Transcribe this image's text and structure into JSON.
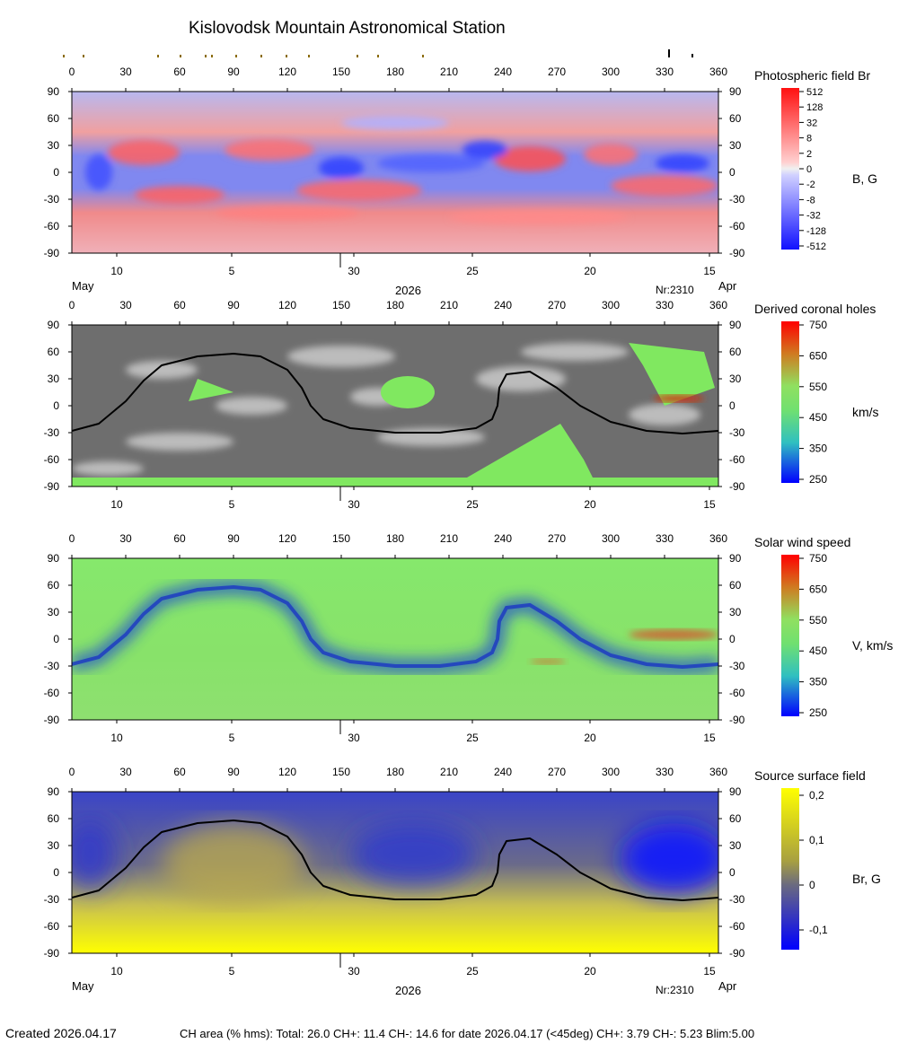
{
  "title": "Kislovodsk Mountain Astronomical Station",
  "chart_data": [
    {
      "type": "heatmap",
      "title": "Photospheric field Br",
      "colorbar_label": "B, G",
      "x_ticks": [
        0,
        30,
        60,
        90,
        120,
        150,
        180,
        210,
        240,
        270,
        300,
        330,
        360
      ],
      "y_ticks": [
        90,
        60,
        30,
        0,
        -30,
        -60,
        -90
      ],
      "xlim": [
        0,
        360
      ],
      "ylim": [
        -90,
        90
      ],
      "colorbar_ticks": [
        "512",
        "128",
        "32",
        "8",
        "2",
        "0",
        "-2",
        "-8",
        "-32",
        "-128",
        "-512"
      ],
      "date_ticks": [
        "10",
        "5",
        "30",
        "25",
        "20",
        "15"
      ],
      "month_left": "May",
      "year": "2026",
      "rotation": "Nr:2310",
      "month_right": "Apr"
    },
    {
      "type": "heatmap",
      "title": "Derived coronal holes",
      "colorbar_label": "km/s",
      "x_ticks": [
        0,
        30,
        60,
        90,
        120,
        150,
        180,
        210,
        240,
        270,
        300,
        330,
        360
      ],
      "y_ticks": [
        90,
        60,
        30,
        0,
        -30,
        -60,
        -90
      ],
      "xlim": [
        0,
        360
      ],
      "ylim": [
        -90,
        90
      ],
      "colorbar_ticks": [
        "750",
        "650",
        "550",
        "450",
        "350",
        "250"
      ],
      "date_ticks": [
        "10",
        "5",
        "30",
        "25",
        "20",
        "15"
      ]
    },
    {
      "type": "heatmap",
      "title": "Solar wind speed",
      "colorbar_label": "V, km/s",
      "x_ticks": [
        0,
        30,
        60,
        90,
        120,
        150,
        180,
        210,
        240,
        270,
        300,
        330,
        360
      ],
      "y_ticks": [
        90,
        60,
        30,
        0,
        -30,
        -60,
        -90
      ],
      "xlim": [
        0,
        360
      ],
      "ylim": [
        -90,
        90
      ],
      "colorbar_ticks": [
        "750",
        "650",
        "550",
        "450",
        "350",
        "250"
      ],
      "date_ticks": [
        "10",
        "5",
        "30",
        "25",
        "20",
        "15"
      ]
    },
    {
      "type": "heatmap",
      "title": "Source surface field",
      "colorbar_label": "Br, G",
      "x_ticks": [
        0,
        30,
        60,
        90,
        120,
        150,
        180,
        210,
        240,
        270,
        300,
        330,
        360
      ],
      "y_ticks": [
        90,
        60,
        30,
        0,
        -30,
        -60,
        -90
      ],
      "xlim": [
        0,
        360
      ],
      "ylim": [
        -90,
        90
      ],
      "colorbar_ticks": [
        "0,2",
        "0,1",
        "0",
        "-0,1"
      ],
      "date_ticks": [
        "10",
        "5",
        "30",
        "25",
        "20",
        "15"
      ],
      "month_left": "May",
      "year": "2026",
      "rotation": "Nr:2310",
      "month_right": "Apr"
    }
  ],
  "neutral_line": [
    [
      0,
      -28
    ],
    [
      15,
      -20
    ],
    [
      30,
      5
    ],
    [
      40,
      28
    ],
    [
      50,
      45
    ],
    [
      70,
      55
    ],
    [
      90,
      58
    ],
    [
      105,
      55
    ],
    [
      120,
      40
    ],
    [
      128,
      20
    ],
    [
      133,
      0
    ],
    [
      140,
      -15
    ],
    [
      155,
      -25
    ],
    [
      180,
      -30
    ],
    [
      205,
      -30
    ],
    [
      225,
      -25
    ],
    [
      234,
      -15
    ],
    [
      237,
      0
    ],
    [
      238,
      20
    ],
    [
      242,
      35
    ],
    [
      255,
      38
    ],
    [
      270,
      20
    ],
    [
      283,
      0
    ],
    [
      300,
      -18
    ],
    [
      320,
      -28
    ],
    [
      340,
      -31
    ],
    [
      360,
      -28
    ]
  ],
  "colors": {
    "field_positive": "#ff2020",
    "field_negative": "#1830ff",
    "coronal_hole_bg_dark": "#6e6e6e",
    "coronal_hole_bg_light": "#bcbcbc",
    "wind_base": "#86e86c",
    "source_positive": "#ffff00",
    "source_negative": "#0000ff"
  },
  "footer": {
    "created": "Created  2026.04.17",
    "stats": "CH area (% hms): Total: 26.0 CH+: 11.4    CH-: 14.6 for date 2026.04.17 (<45deg) CH+: 3.79     CH-: 5.23 Blim:5.00"
  }
}
